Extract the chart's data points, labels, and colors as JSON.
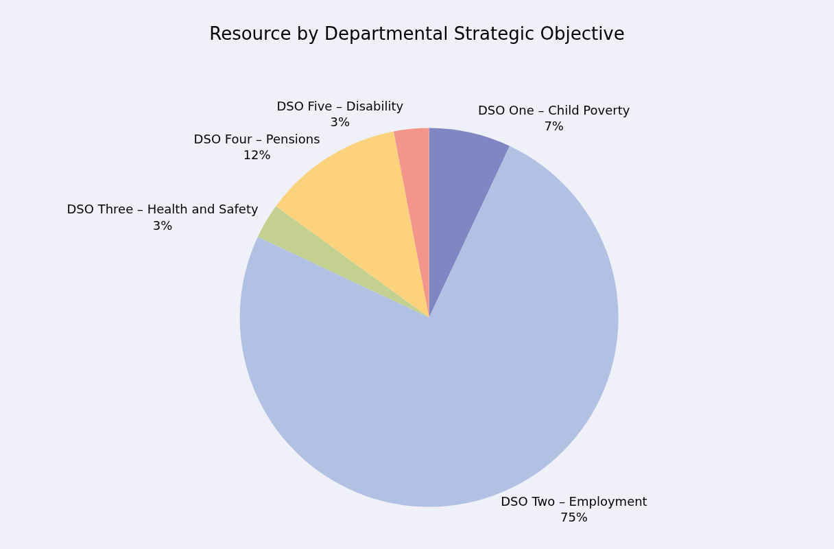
{
  "chart_data": {
    "type": "pie",
    "title": "Resource by Departmental Strategic Objective",
    "categories": [
      "DSO One – Child Poverty",
      "DSO Two – Employment",
      "DSO Three – Health and Safety",
      "DSO Four – Pensions",
      "DSO Five – Disability"
    ],
    "values": [
      7,
      75,
      3,
      12,
      3
    ],
    "value_labels": [
      "7%",
      "75%",
      "3%",
      "12%",
      "3%"
    ],
    "colors": [
      "#7f86c1",
      "#b1c1e3",
      "#c3d08f",
      "#fdd27c",
      "#f3958a"
    ],
    "legend": false
  }
}
